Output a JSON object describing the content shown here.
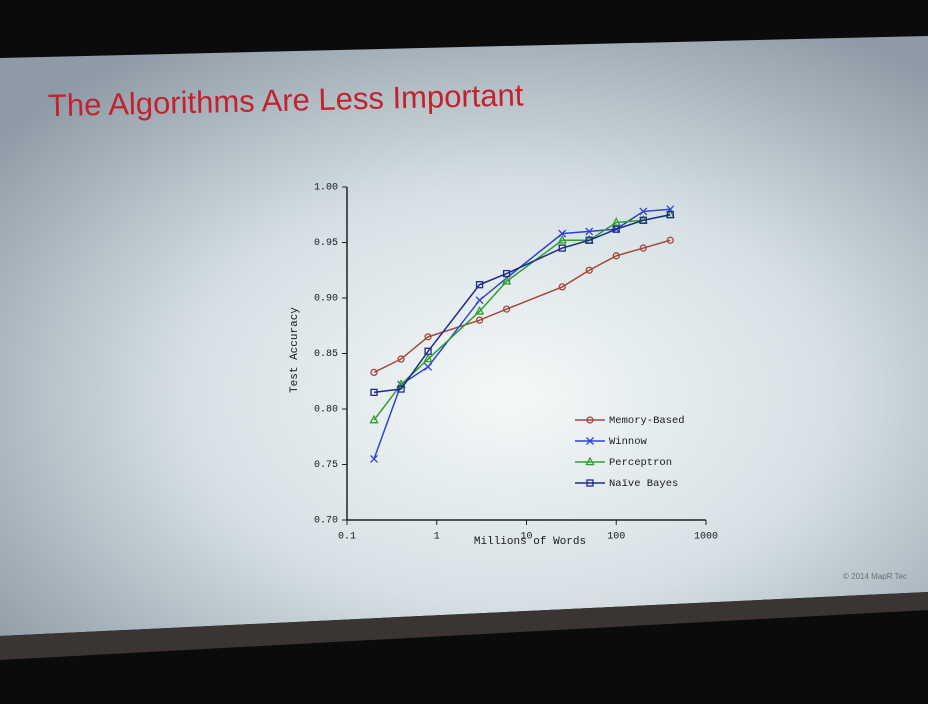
{
  "chart_data": {
    "type": "line",
    "title": "The Algorithms Are Less Important",
    "x_label": "Millions of Words",
    "y_label": "Test Accuracy",
    "x": [
      0.2,
      0.4,
      0.8,
      3,
      6,
      25,
      50,
      100,
      200,
      400
    ],
    "log_x": true,
    "xlim": [
      0.1,
      1000
    ],
    "xticks": [
      0.1,
      1,
      10,
      100,
      1000
    ],
    "ylim": [
      0.7,
      1.0
    ],
    "yticks": [
      {
        "value": 0.7,
        "label": "0.70"
      },
      0.75,
      {
        "value": 0.8,
        "label": "0.80"
      },
      0.85,
      {
        "value": 0.9,
        "label": "0.90"
      },
      0.95,
      {
        "value": 1.0,
        "label": "1.00"
      }
    ],
    "legend": "lower right",
    "series": [
      {
        "name": "Memory-Based",
        "color": "#a5483e",
        "marker": "circle",
        "values": [
          0.833,
          0.845,
          0.865,
          0.88,
          0.89,
          0.91,
          0.925,
          0.938,
          0.945,
          0.952
        ]
      },
      {
        "name": "Winnow",
        "color": "#2e43d6",
        "marker": "x",
        "values": [
          0.755,
          0.822,
          0.838,
          0.898,
          0.918,
          0.958,
          0.96,
          0.962,
          0.978,
          0.98
        ]
      },
      {
        "name": "Perceptron",
        "color": "#2ea02e",
        "marker": "triangle",
        "values": [
          0.79,
          0.822,
          0.845,
          0.888,
          0.915,
          0.952,
          0.952,
          0.968,
          0.97,
          0.975
        ]
      },
      {
        "name": "Naïve Bayes",
        "color": "#1d2c86",
        "marker": "square",
        "values": [
          0.815,
          0.818,
          0.852,
          0.912,
          0.922,
          0.945,
          0.952,
          0.962,
          0.97,
          0.975
        ]
      }
    ]
  },
  "footer": "© 2014 MapR Tec"
}
